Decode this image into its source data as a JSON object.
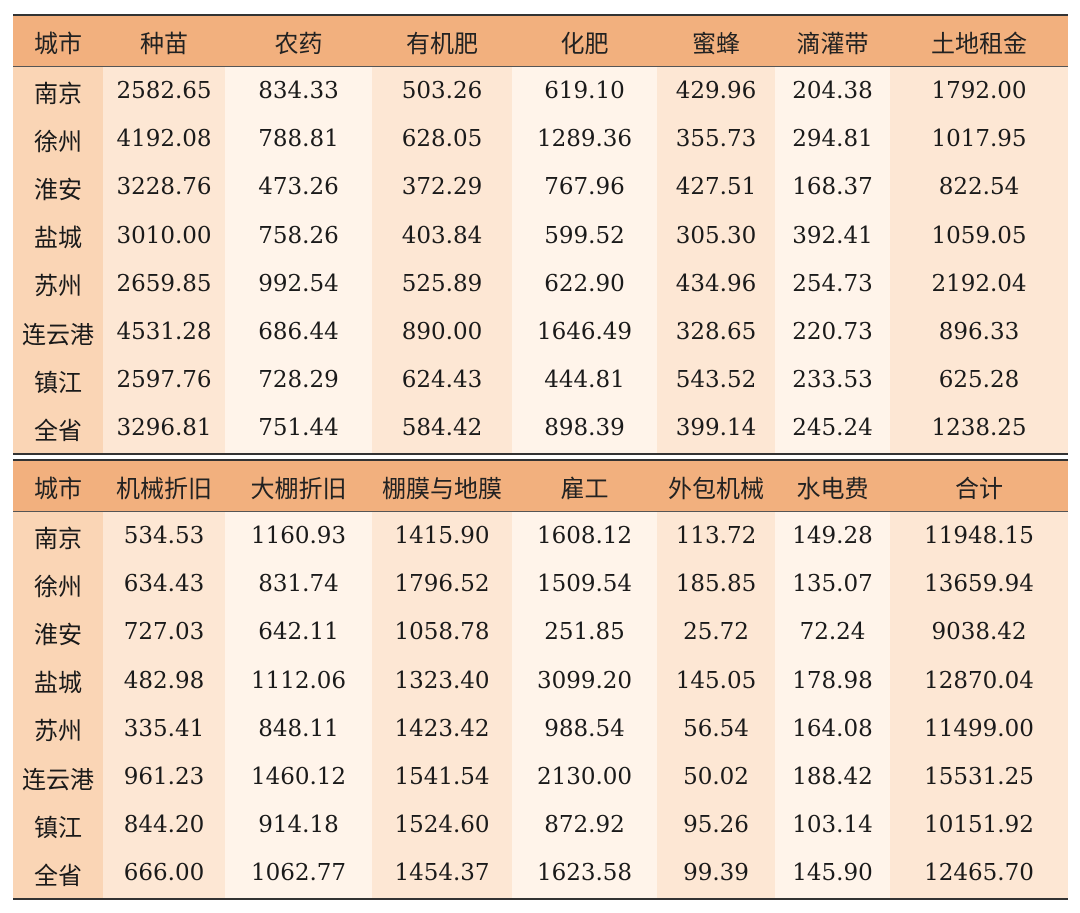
{
  "table1": {
    "headers": [
      "城市",
      "种苗",
      "农药",
      "有机肥",
      "化肥",
      "蜜蜂",
      "滴灌带",
      "土地租金"
    ],
    "rows": [
      [
        "南京",
        "2582.65",
        "834.33",
        "503.26",
        "619.10",
        "429.96",
        "204.38",
        "1792.00"
      ],
      [
        "徐州",
        "4192.08",
        "788.81",
        "628.05",
        "1289.36",
        "355.73",
        "294.81",
        "1017.95"
      ],
      [
        "淮安",
        "3228.76",
        "473.26",
        "372.29",
        "767.96",
        "427.51",
        "168.37",
        "822.54"
      ],
      [
        "盐城",
        "3010.00",
        "758.26",
        "403.84",
        "599.52",
        "305.30",
        "392.41",
        "1059.05"
      ],
      [
        "苏州",
        "2659.85",
        "992.54",
        "525.89",
        "622.90",
        "434.96",
        "254.73",
        "2192.04"
      ],
      [
        "连云港",
        "4531.28",
        "686.44",
        "890.00",
        "1646.49",
        "328.65",
        "220.73",
        "896.33"
      ],
      [
        "镇江",
        "2597.76",
        "728.29",
        "624.43",
        "444.81",
        "543.52",
        "233.53",
        "625.28"
      ],
      [
        "全省",
        "3296.81",
        "751.44",
        "584.42",
        "898.39",
        "399.14",
        "245.24",
        "1238.25"
      ]
    ]
  },
  "table2": {
    "headers": [
      "城市",
      "机械折旧",
      "大棚折旧",
      "棚膜与地膜",
      "雇工",
      "外包机械",
      "水电费",
      "合计"
    ],
    "rows": [
      [
        "南京",
        "534.53",
        "1160.93",
        "1415.90",
        "1608.12",
        "113.72",
        "149.28",
        "11948.15"
      ],
      [
        "徐州",
        "634.43",
        "831.74",
        "1796.52",
        "1509.54",
        "185.85",
        "135.07",
        "13659.94"
      ],
      [
        "淮安",
        "727.03",
        "642.11",
        "1058.78",
        "251.85",
        "25.72",
        "72.24",
        "9038.42"
      ],
      [
        "盐城",
        "482.98",
        "1112.06",
        "1323.40",
        "3099.20",
        "145.05",
        "178.98",
        "12870.04"
      ],
      [
        "苏州",
        "335.41",
        "848.11",
        "1423.42",
        "988.54",
        "56.54",
        "164.08",
        "11499.00"
      ],
      [
        "连云港",
        "961.23",
        "1460.12",
        "1541.54",
        "2130.00",
        "50.02",
        "188.42",
        "15531.25"
      ],
      [
        "镇江",
        "844.20",
        "914.18",
        "1524.60",
        "872.92",
        "95.26",
        "103.14",
        "10151.92"
      ],
      [
        "全省",
        "666.00",
        "1062.77",
        "1454.37",
        "1623.58",
        "99.39",
        "145.90",
        "12465.70"
      ]
    ]
  },
  "colors": {
    "header": "#f2b07e",
    "city_column": "#fad5b5",
    "alt_column": "#fde7d4",
    "plain_column": "#fff4ea"
  }
}
